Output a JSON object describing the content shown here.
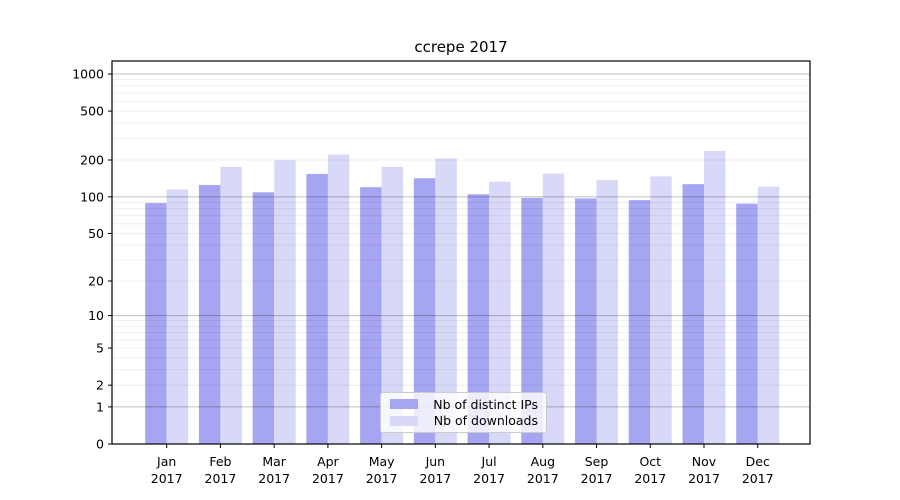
{
  "chart_data": {
    "type": "bar",
    "title": "ccrepe 2017",
    "categories": [
      "Jan 2017",
      "Feb 2017",
      "Mar 2017",
      "Apr 2017",
      "May 2017",
      "Jun 2017",
      "Jul 2017",
      "Aug 2017",
      "Sep 2017",
      "Oct 2017",
      "Nov 2017",
      "Dec 2017"
    ],
    "series": [
      {
        "name": "Nb of distinct IPs",
        "color": "#a5a5f1",
        "values": [
          89,
          125,
          109,
          154,
          120,
          142,
          105,
          98,
          97,
          94,
          127,
          88
        ]
      },
      {
        "name": "Nb of downloads",
        "color": "#d8d8f8",
        "values": [
          115,
          176,
          199,
          222,
          176,
          206,
          133,
          155,
          137,
          147,
          237,
          121
        ]
      }
    ],
    "y_scale": "log1p",
    "y_ticks": [
      0,
      1,
      2,
      5,
      10,
      20,
      50,
      100,
      200,
      500,
      1000
    ],
    "ylim": [
      0,
      1276
    ],
    "grid": true,
    "legend_position": "lower center inside"
  }
}
